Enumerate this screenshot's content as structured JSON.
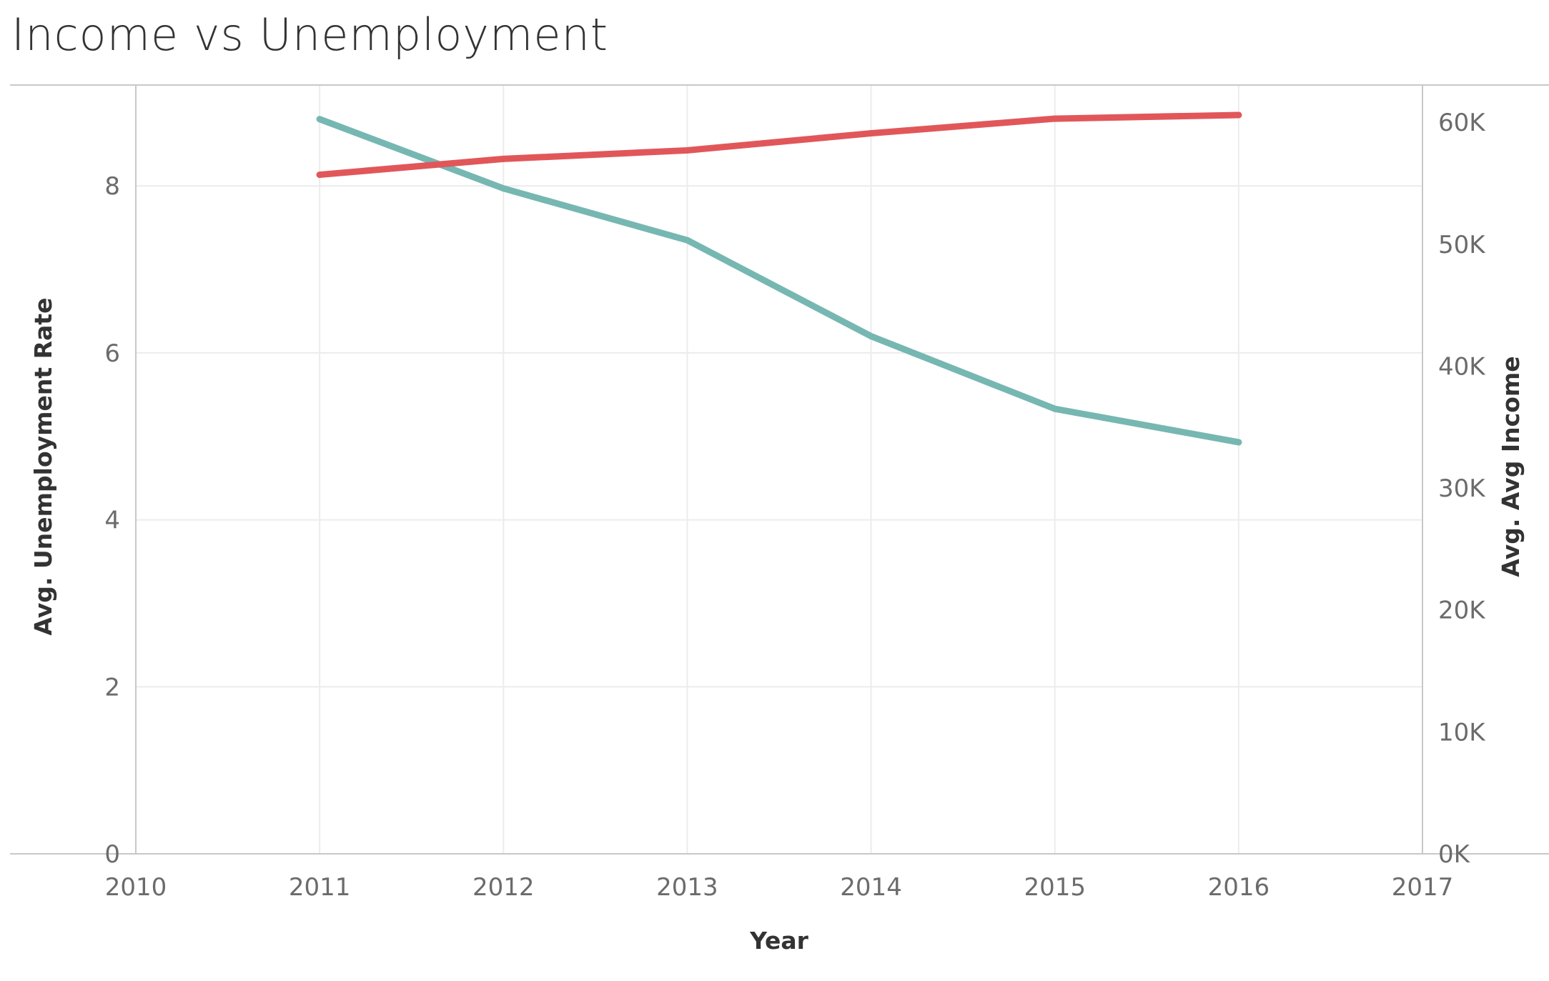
{
  "title": "Income vs Unemployment",
  "chart_data": {
    "type": "line",
    "title": "Income vs Unemployment",
    "xlabel": "Year",
    "ylabel": "Avg. Unemployment Rate",
    "y2label": "Avg. Avg Income",
    "x": [
      2011,
      2012,
      2013,
      2014,
      2015,
      2016
    ],
    "xlim": [
      2010,
      2017
    ],
    "x_ticks": [
      "2010",
      "2011",
      "2012",
      "2013",
      "2014",
      "2015",
      "2016",
      "2017"
    ],
    "ylim": [
      0,
      9.2
    ],
    "y_ticks": [
      "0",
      "2",
      "4",
      "6",
      "8"
    ],
    "y2lim": [
      0,
      63000
    ],
    "y2_ticks": [
      "0K",
      "10K",
      "20K",
      "30K",
      "40K",
      "50K",
      "60K"
    ],
    "series": [
      {
        "axis": "left",
        "color": "#76b7b2",
        "values": [
          8.8,
          7.97,
          7.35,
          6.2,
          5.33,
          4.93
        ]
      },
      {
        "axis": "right",
        "color": "#e15759",
        "values": [
          55700,
          57000,
          57700,
          59100,
          60300,
          60600
        ]
      }
    ],
    "grid": true,
    "legend": "none"
  }
}
